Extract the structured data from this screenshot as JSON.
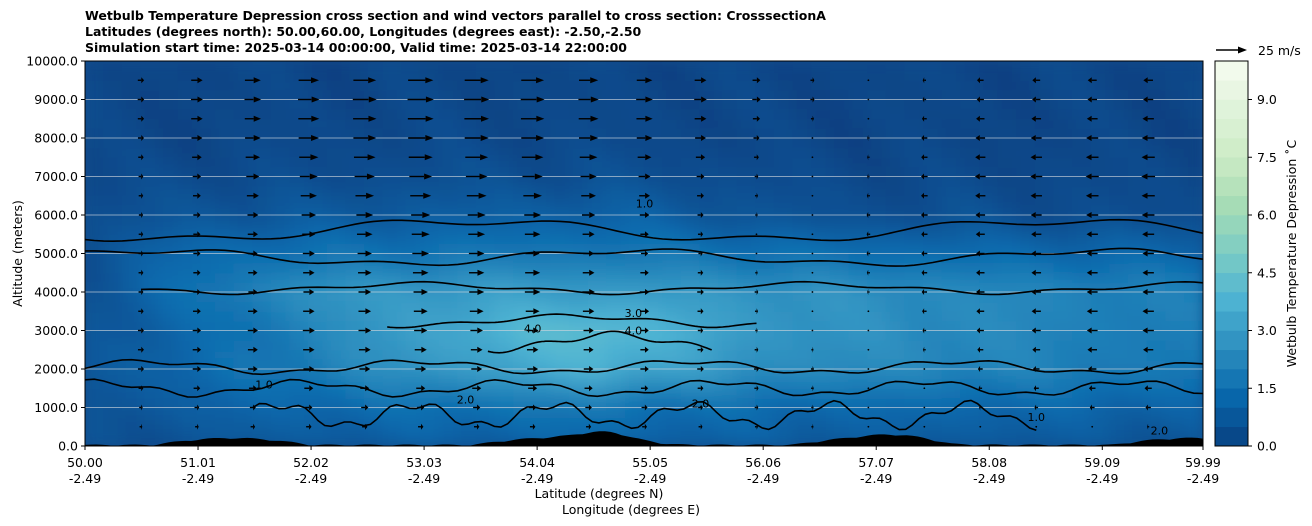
{
  "chart_data": {
    "type": "cross-section-contour",
    "title_lines": [
      "Wetbulb Temperature Depression cross section and wind vectors parallel to cross section: CrosssectionA",
      "Latitudes (degrees north): 50.00,60.00, Longitudes (degrees east): -2.50,-2.50",
      "Simulation start time: 2025-03-14 00:00:00, Valid time: 2025-03-14 22:00:00"
    ],
    "ylabel": "Altitude (meters)",
    "xlabel_lat": "Latitude (degrees N)",
    "xlabel_lon": "Longitude (degrees E)",
    "ylim": [
      0,
      10000
    ],
    "yticks": [
      "0.0",
      "1000.0",
      "2000.0",
      "3000.0",
      "4000.0",
      "5000.0",
      "6000.0",
      "7000.0",
      "8000.0",
      "9000.0",
      "10000.0"
    ],
    "xlim": [
      50.0,
      59.99
    ],
    "xticks": [
      {
        "lat": "50.00",
        "lon": "-2.49"
      },
      {
        "lat": "51.01",
        "lon": "-2.49"
      },
      {
        "lat": "52.02",
        "lon": "-2.49"
      },
      {
        "lat": "53.03",
        "lon": "-2.49"
      },
      {
        "lat": "54.04",
        "lon": "-2.49"
      },
      {
        "lat": "55.05",
        "lon": "-2.49"
      },
      {
        "lat": "56.06",
        "lon": "-2.49"
      },
      {
        "lat": "57.07",
        "lon": "-2.49"
      },
      {
        "lat": "58.08",
        "lon": "-2.49"
      },
      {
        "lat": "59.09",
        "lon": "-2.49"
      },
      {
        "lat": "59.99",
        "lon": "-2.49"
      }
    ],
    "colorbar": {
      "label": "Wetbulb Temperature Depression ˚C",
      "range": [
        0,
        10
      ],
      "levels": 20,
      "ticks": [
        "0.0",
        "1.5",
        "3.0",
        "4.5",
        "6.0",
        "7.5",
        "9.0"
      ]
    },
    "contour_labels": [
      "1.0",
      "2.0",
      "3.0",
      "4.0"
    ],
    "quiver_key": {
      "label": "25 m/s",
      "speed": 25
    },
    "depression_profile": {
      "lat": [
        50.0,
        51.0,
        52.0,
        53.0,
        54.0,
        54.6,
        55.0,
        56.0,
        57.0,
        58.0,
        59.0,
        59.99
      ],
      "altitude_m": [
        0,
        1000,
        2000,
        3000,
        4000,
        5000,
        6000,
        7000,
        8000,
        10000
      ],
      "values_C": [
        [
          0.4,
          0.6,
          0.8,
          0.9,
          1.0,
          1.1,
          1.0,
          0.9,
          0.8,
          0.8,
          0.7,
          0.6
        ],
        [
          0.6,
          1.0,
          1.3,
          1.5,
          1.7,
          1.8,
          1.6,
          1.4,
          1.3,
          1.3,
          1.2,
          1.1
        ],
        [
          0.8,
          1.3,
          2.0,
          2.8,
          3.4,
          3.8,
          3.4,
          2.6,
          2.4,
          2.3,
          2.0,
          1.8
        ],
        [
          0.7,
          1.2,
          2.2,
          3.2,
          4.0,
          4.3,
          3.9,
          2.9,
          2.6,
          2.4,
          2.1,
          1.9
        ],
        [
          0.6,
          1.6,
          2.7,
          3.0,
          3.1,
          3.0,
          3.0,
          2.8,
          2.6,
          2.4,
          2.2,
          2.0
        ],
        [
          0.5,
          1.4,
          1.6,
          1.7,
          1.8,
          1.8,
          1.8,
          1.6,
          1.5,
          1.4,
          1.3,
          1.2
        ],
        [
          0.4,
          0.7,
          0.8,
          0.9,
          1.0,
          1.1,
          1.0,
          0.6,
          0.5,
          0.5,
          0.4,
          0.4
        ],
        [
          0.3,
          0.4,
          0.4,
          0.5,
          0.5,
          0.5,
          0.5,
          0.4,
          0.3,
          0.3,
          0.3,
          0.3
        ],
        [
          0.2,
          0.2,
          0.3,
          0.3,
          0.3,
          0.3,
          0.3,
          0.2,
          0.2,
          0.2,
          0.2,
          0.2
        ],
        [
          0.2,
          0.2,
          0.2,
          0.2,
          0.2,
          0.2,
          0.2,
          0.2,
          0.2,
          0.2,
          0.2,
          0.2
        ]
      ]
    },
    "wind_parallel_ms": {
      "lat": [
        50.0,
        51.0,
        52.0,
        53.0,
        54.0,
        55.0,
        56.0,
        57.0,
        58.0,
        59.0,
        59.99
      ],
      "altitude_m": [
        0,
        1000,
        2000,
        3000,
        4000,
        5000,
        6000,
        7000,
        8000,
        9000,
        10000
      ],
      "speed": [
        [
          1,
          2,
          3,
          3,
          3,
          3,
          2,
          1,
          1,
          1,
          1
        ],
        [
          2,
          4,
          6,
          6,
          6,
          5,
          3,
          1,
          -2,
          -4,
          -5
        ],
        [
          3,
          7,
          9,
          9,
          9,
          7,
          4,
          1,
          -4,
          -7,
          -8
        ],
        [
          3,
          7,
          10,
          11,
          10,
          7,
          2,
          0,
          -6,
          -9,
          -10
        ],
        [
          2,
          6,
          9,
          12,
          13,
          8,
          3,
          -2,
          -7,
          -9,
          -10
        ],
        [
          2,
          6,
          10,
          14,
          12,
          6,
          1,
          -3,
          -7,
          -9,
          -10
        ],
        [
          1,
          6,
          12,
          16,
          14,
          8,
          2,
          -3,
          -8,
          -10,
          -11
        ],
        [
          1,
          7,
          15,
          19,
          17,
          10,
          3,
          -2,
          -9,
          -11,
          -12
        ],
        [
          1,
          9,
          17,
          21,
          19,
          13,
          5,
          -2,
          -8,
          -10,
          -11
        ],
        [
          1,
          10,
          18,
          22,
          20,
          14,
          7,
          0,
          -6,
          -8,
          -9
        ],
        [
          1,
          9,
          16,
          20,
          18,
          12,
          6,
          0,
          -5,
          -7,
          -8
        ]
      ]
    }
  }
}
